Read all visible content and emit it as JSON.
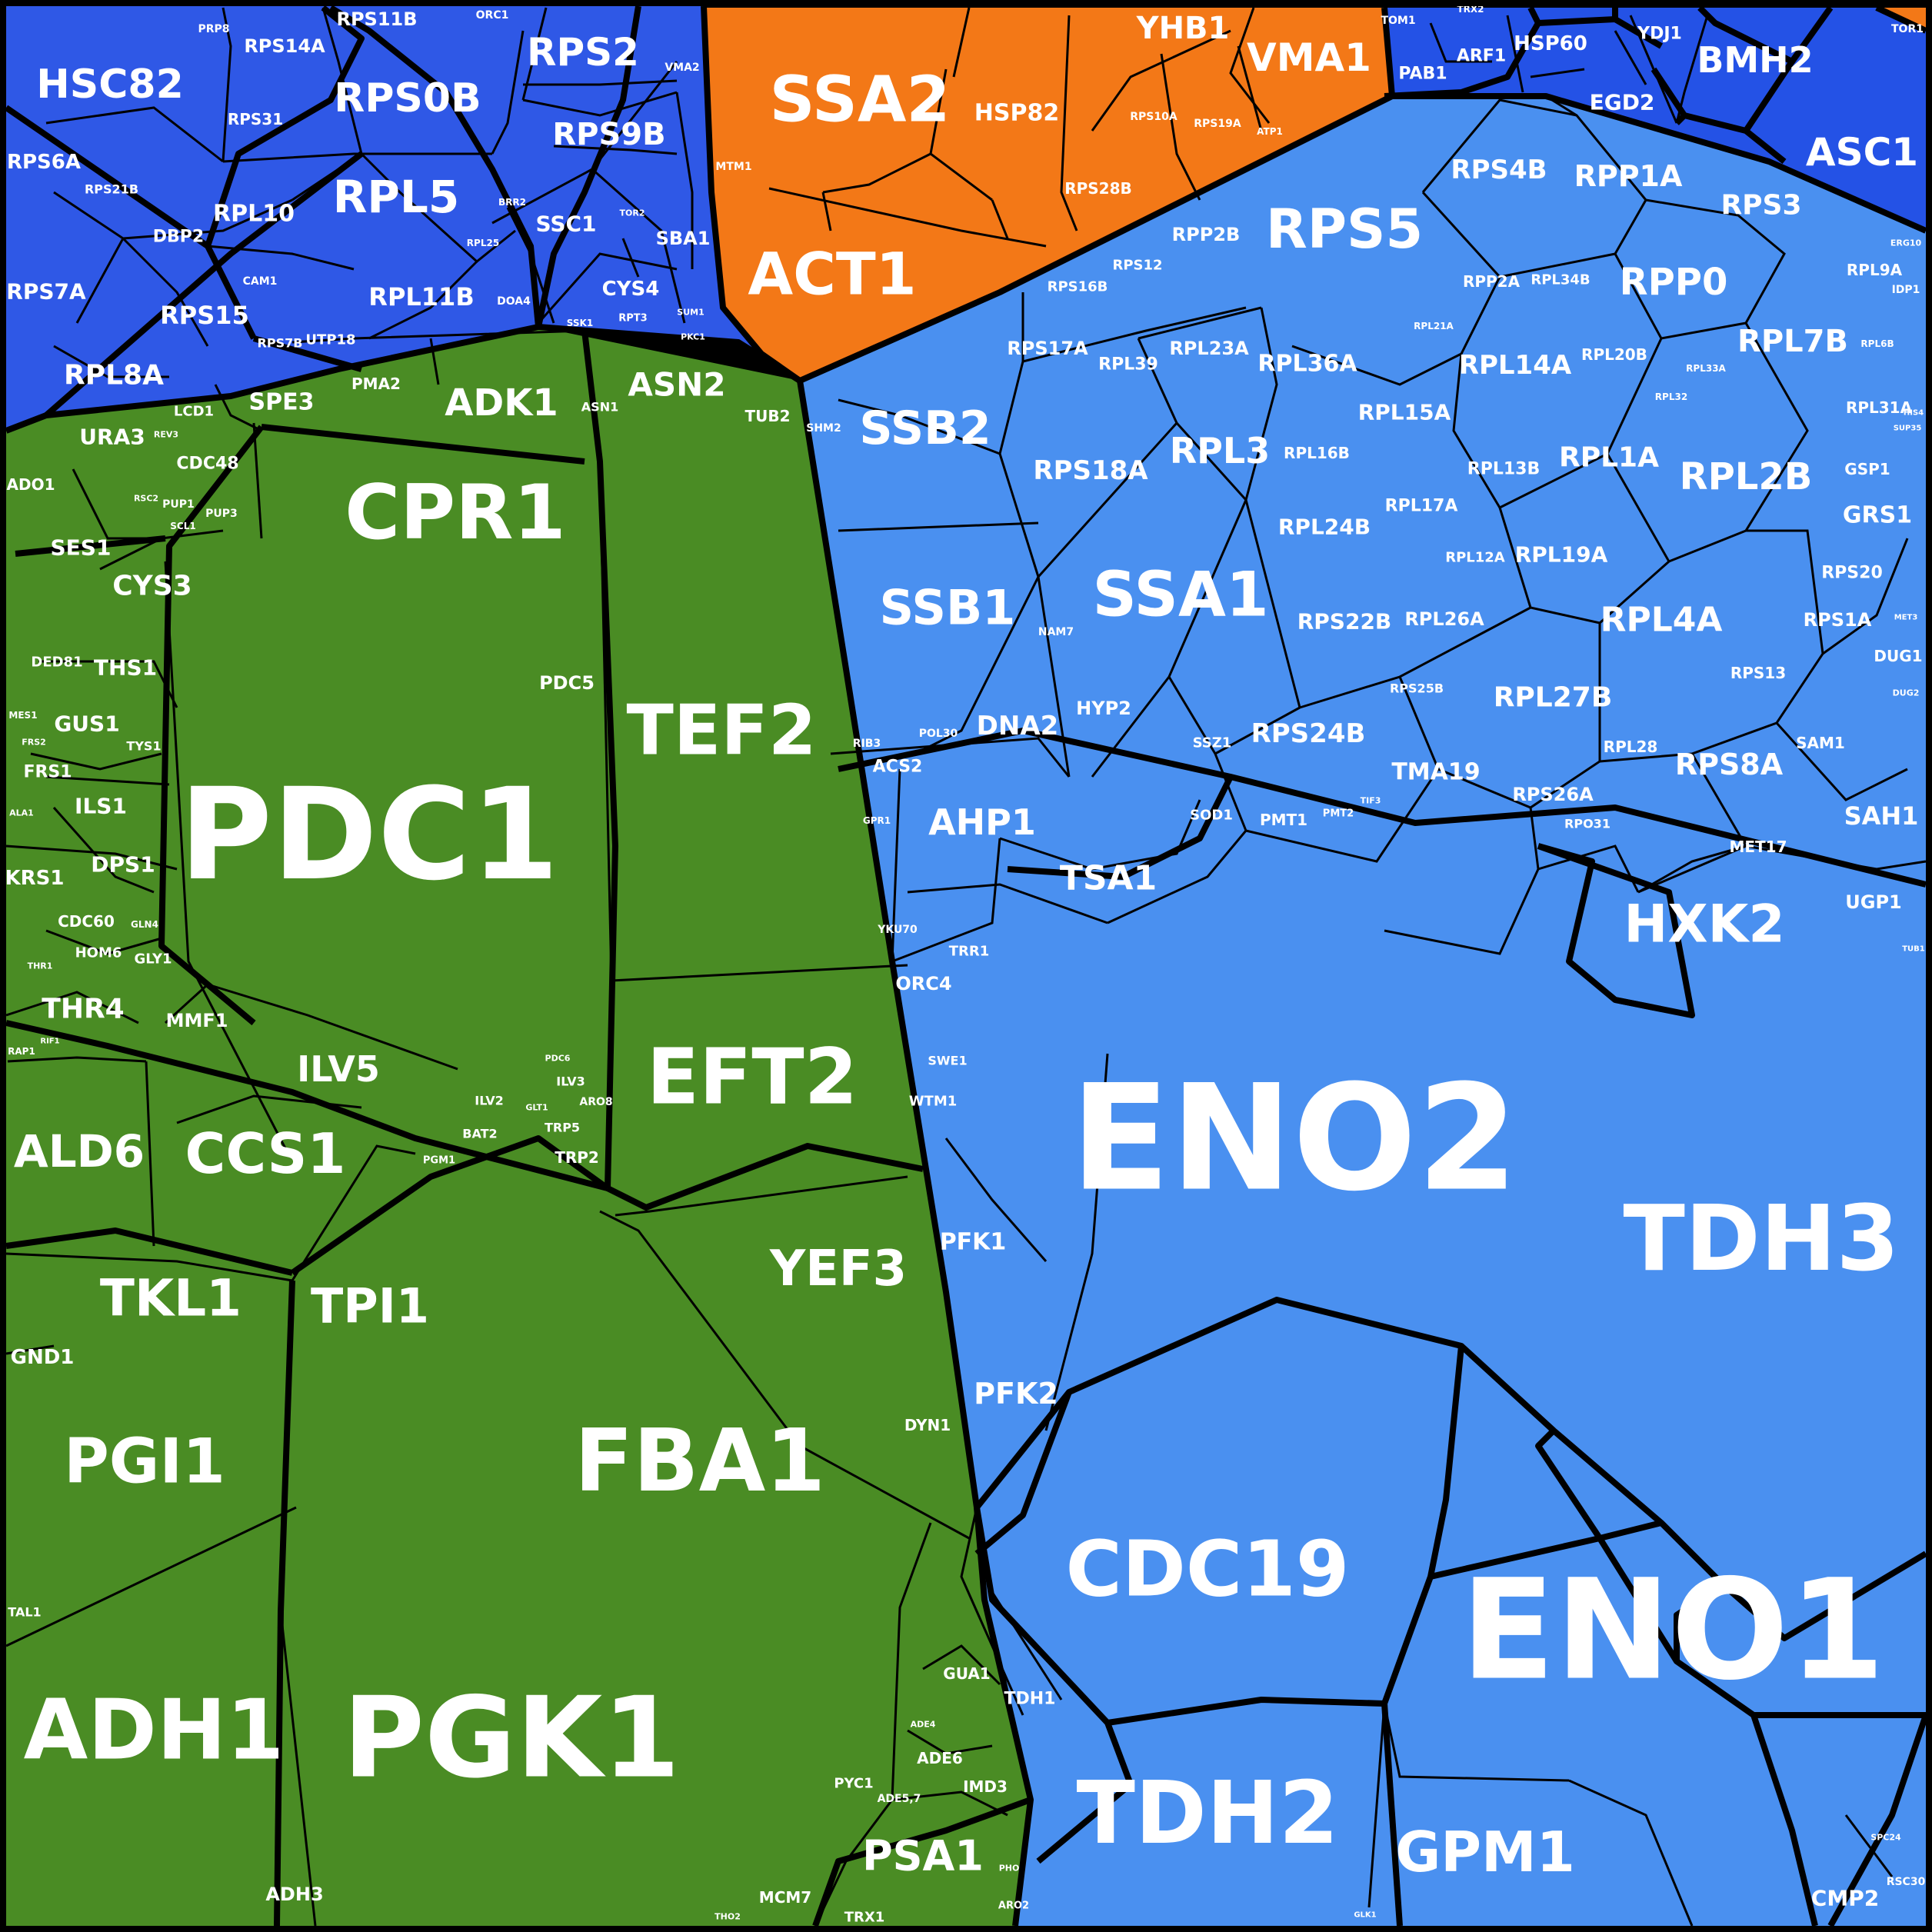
{
  "colors": {
    "green": "#4a8c24",
    "orange": "#f37817",
    "blue_dark": "#2554e8",
    "blue_light": "#4a90f0",
    "border": "#000000",
    "label": "#ffffff"
  },
  "regions": {
    "green": {
      "cells": [
        {
          "name": "PDC1",
          "label": "PDC1"
        },
        {
          "name": "PGK1",
          "label": "PGK1"
        },
        {
          "name": "FBA1",
          "label": "FBA1"
        },
        {
          "name": "ADH1",
          "label": "ADH1"
        },
        {
          "name": "TEF2",
          "label": "TEF2"
        },
        {
          "name": "EFT2",
          "label": "EFT2"
        },
        {
          "name": "CPR1",
          "label": "CPR1"
        },
        {
          "name": "PGI1",
          "label": "PGI1"
        },
        {
          "name": "CCS1",
          "label": "CCS1"
        },
        {
          "name": "ALD6",
          "label": "ALD6"
        },
        {
          "name": "TKL1",
          "label": "TKL1"
        },
        {
          "name": "TPI1",
          "label": "TPI1"
        },
        {
          "name": "YEF3",
          "label": "YEF3"
        },
        {
          "name": "ADK1",
          "label": "ADK1"
        },
        {
          "name": "ASN2",
          "label": "ASN2"
        },
        {
          "name": "ILV5",
          "label": "ILV5"
        },
        {
          "name": "PSA1",
          "label": "PSA1"
        },
        {
          "name": "CYS3",
          "label": "CYS3"
        },
        {
          "name": "THR4",
          "label": "THR4"
        },
        {
          "name": "SES1",
          "label": "SES1"
        },
        {
          "name": "URA3",
          "label": "URA3"
        },
        {
          "name": "SPE3",
          "label": "SPE3"
        },
        {
          "name": "THS1",
          "label": "THS1"
        },
        {
          "name": "GUS1",
          "label": "GUS1"
        },
        {
          "name": "ILS1",
          "label": "ILS1"
        },
        {
          "name": "DPS1",
          "label": "DPS1"
        },
        {
          "name": "KRS1",
          "label": "KRS1"
        },
        {
          "name": "FRS1",
          "label": "FRS1"
        },
        {
          "name": "MMF1",
          "label": "MMF1"
        },
        {
          "name": "GND1",
          "label": "GND1"
        },
        {
          "name": "ADH3",
          "label": "ADH3"
        },
        {
          "name": "TRP2",
          "label": "TRP2"
        },
        {
          "name": "ILV3",
          "label": "ILV3"
        },
        {
          "name": "ILV2",
          "label": "ILV2"
        },
        {
          "name": "BAT2",
          "label": "BAT2"
        },
        {
          "name": "TRP5",
          "label": "TRP5"
        },
        {
          "name": "ARO8",
          "label": "ARO8"
        },
        {
          "name": "PDC5",
          "label": "PDC5"
        },
        {
          "name": "PDC6",
          "label": "PDC6"
        },
        {
          "name": "GLT1",
          "label": "GLT1"
        },
        {
          "name": "PGM1",
          "label": "PGM1"
        },
        {
          "name": "CDC48",
          "label": "CDC48"
        },
        {
          "name": "LCD1",
          "label": "LCD1"
        },
        {
          "name": "PMA2",
          "label": "PMA2"
        },
        {
          "name": "ASN1",
          "label": "ASN1"
        },
        {
          "name": "TUB2",
          "label": "TUB2"
        },
        {
          "name": "ADO1",
          "label": "ADO1"
        },
        {
          "name": "CDC60",
          "label": "CDC60"
        },
        {
          "name": "HOM6",
          "label": "HOM6"
        },
        {
          "name": "GLY1",
          "label": "GLY1"
        },
        {
          "name": "DED81",
          "label": "DED81"
        },
        {
          "name": "TYS1",
          "label": "TYS1"
        },
        {
          "name": "MES1",
          "label": "MES1"
        },
        {
          "name": "FRS2",
          "label": "FRS2"
        },
        {
          "name": "ALA1",
          "label": "ALA1"
        },
        {
          "name": "GLN4",
          "label": "GLN4"
        },
        {
          "name": "THR1",
          "label": "THR1"
        },
        {
          "name": "RIF1",
          "label": "RIF1"
        },
        {
          "name": "RAP1",
          "label": "RAP1"
        },
        {
          "name": "TAL1",
          "label": "TAL1"
        },
        {
          "name": "DYN1",
          "label": "DYN1"
        },
        {
          "name": "GUA1",
          "label": "GUA1"
        },
        {
          "name": "ADE6",
          "label": "ADE6"
        },
        {
          "name": "IMD3",
          "label": "IMD3"
        },
        {
          "name": "PYC1",
          "label": "PYC1"
        },
        {
          "name": "ADE5,7",
          "label": "ADE5,7"
        },
        {
          "name": "ADE4",
          "label": "ADE4"
        },
        {
          "name": "MCM7",
          "label": "MCM7"
        },
        {
          "name": "TRX1",
          "label": "TRX1"
        },
        {
          "name": "ARO2",
          "label": "ARO2"
        },
        {
          "name": "PHO",
          "label": "PHO"
        },
        {
          "name": "THO2",
          "label": "THO2"
        },
        {
          "name": "PUP1",
          "label": "PUP1"
        },
        {
          "name": "PUP3",
          "label": "PUP3"
        },
        {
          "name": "SCL1",
          "label": "SCL1"
        },
        {
          "name": "RSC2",
          "label": "RSC2"
        },
        {
          "name": "REV3",
          "label": "REV3"
        }
      ]
    },
    "orange": {
      "cells": [
        {
          "name": "SSA2",
          "label": "SSA2"
        },
        {
          "name": "ACT1",
          "label": "ACT1"
        },
        {
          "name": "HSP82",
          "label": "HSP82"
        },
        {
          "name": "YHB1",
          "label": "YHB1"
        },
        {
          "name": "VMA1",
          "label": "VMA1"
        },
        {
          "name": "RPS28B",
          "label": "RPS28B"
        },
        {
          "name": "RPS10A",
          "label": "RPS10A"
        },
        {
          "name": "RPS19A",
          "label": "RPS19A"
        },
        {
          "name": "ATP1",
          "label": "ATP1"
        },
        {
          "name": "MTM1",
          "label": "MTM1"
        },
        {
          "name": "TOR1",
          "label": "TOR1"
        }
      ]
    },
    "dark_blue": {
      "cells": [
        {
          "name": "HSC82",
          "label": "HSC82"
        },
        {
          "name": "RPS0B",
          "label": "RPS0B"
        },
        {
          "name": "RPL5",
          "label": "RPL5"
        },
        {
          "name": "RPS2",
          "label": "RPS2"
        },
        {
          "name": "RPS9B",
          "label": "RPS9B"
        },
        {
          "name": "RPS14A",
          "label": "RPS14A"
        },
        {
          "name": "RPS11B",
          "label": "RPS11B"
        },
        {
          "name": "RPS6A",
          "label": "RPS6A"
        },
        {
          "name": "RPS7A",
          "label": "RPS7A"
        },
        {
          "name": "RPL8A",
          "label": "RPL8A"
        },
        {
          "name": "RPS15",
          "label": "RPS15"
        },
        {
          "name": "RPL10",
          "label": "RPL10"
        },
        {
          "name": "RPL11B",
          "label": "RPL11B"
        },
        {
          "name": "DBP2",
          "label": "DBP2"
        },
        {
          "name": "RPS31",
          "label": "RPS31"
        },
        {
          "name": "RPS21B",
          "label": "RPS21B"
        },
        {
          "name": "CAM1",
          "label": "CAM1"
        },
        {
          "name": "RPS7B",
          "label": "RPS7B"
        },
        {
          "name": "UTP18",
          "label": "UTP18"
        },
        {
          "name": "SSC1",
          "label": "SSC1"
        },
        {
          "name": "SBA1",
          "label": "SBA1"
        },
        {
          "name": "CYS4",
          "label": "CYS4"
        },
        {
          "name": "BMH2",
          "label": "BMH2"
        },
        {
          "name": "ASC1",
          "label": "ASC1"
        },
        {
          "name": "HSP60",
          "label": "HSP60"
        },
        {
          "name": "EGD2",
          "label": "EGD2"
        },
        {
          "name": "YDJ1",
          "label": "YDJ1"
        },
        {
          "name": "ARF1",
          "label": "ARF1"
        },
        {
          "name": "PAB1",
          "label": "PAB1"
        },
        {
          "name": "TOM1",
          "label": "TOM1"
        },
        {
          "name": "PRP8",
          "label": "PRP8"
        },
        {
          "name": "ORC1",
          "label": "ORC1"
        },
        {
          "name": "VMA2",
          "label": "VMA2"
        },
        {
          "name": "DOA4",
          "label": "DOA4"
        },
        {
          "name": "RPL25",
          "label": "RPL25"
        },
        {
          "name": "BRR2",
          "label": "BRR2"
        },
        {
          "name": "SSK1",
          "label": "SSK1"
        },
        {
          "name": "RPT3",
          "label": "RPT3"
        },
        {
          "name": "TOR2",
          "label": "TOR2"
        },
        {
          "name": "PKC1",
          "label": "PKC1"
        },
        {
          "name": "SUM1",
          "label": "SUM1"
        },
        {
          "name": "TRX2",
          "label": "TRX2"
        }
      ]
    },
    "light_blue": {
      "cells": [
        {
          "name": "ENO2",
          "label": "ENO2"
        },
        {
          "name": "ENO1",
          "label": "ENO1"
        },
        {
          "name": "TDH3",
          "label": "TDH3"
        },
        {
          "name": "TDH2",
          "label": "TDH2"
        },
        {
          "name": "CDC19",
          "label": "CDC19"
        },
        {
          "name": "GPM1",
          "label": "GPM1"
        },
        {
          "name": "HXK2",
          "label": "HXK2"
        },
        {
          "name": "SSA1",
          "label": "SSA1"
        },
        {
          "name": "RPS5",
          "label": "RPS5"
        },
        {
          "name": "SSB2",
          "label": "SSB2"
        },
        {
          "name": "SSB1",
          "label": "SSB1"
        },
        {
          "name": "RPL4A",
          "label": "RPL4A"
        },
        {
          "name": "RPL2B",
          "label": "RPL2B"
        },
        {
          "name": "RPP0",
          "label": "RPP0"
        },
        {
          "name": "RPL3",
          "label": "RPL3"
        },
        {
          "name": "RPS8A",
          "label": "RPS8A"
        },
        {
          "name": "AHP1",
          "label": "AHP1"
        },
        {
          "name": "TSA1",
          "label": "TSA1"
        },
        {
          "name": "PFK2",
          "label": "PFK2"
        },
        {
          "name": "PFK1",
          "label": "PFK1"
        },
        {
          "name": "RPL7B",
          "label": "RPL7B"
        },
        {
          "name": "RPL14A",
          "label": "RPL14A"
        },
        {
          "name": "RPL1A",
          "label": "RPL1A"
        },
        {
          "name": "RPL27B",
          "label": "RPL27B"
        },
        {
          "name": "RPS24B",
          "label": "RPS24B"
        },
        {
          "name": "RPP1A",
          "label": "RPP1A"
        },
        {
          "name": "RPS4B",
          "label": "RPS4B"
        },
        {
          "name": "RPS3",
          "label": "RPS3"
        },
        {
          "name": "RPS18A",
          "label": "RPS18A"
        },
        {
          "name": "RPL36A",
          "label": "RPL36A"
        },
        {
          "name": "RPL15A",
          "label": "RPL15A"
        },
        {
          "name": "RPL24B",
          "label": "RPL24B"
        },
        {
          "name": "RPL19A",
          "label": "RPL19A"
        },
        {
          "name": "RPS22B",
          "label": "RPS22B"
        },
        {
          "name": "RPL26A",
          "label": "RPL26A"
        },
        {
          "name": "TMA19",
          "label": "TMA19"
        },
        {
          "name": "RPS26A",
          "label": "RPS26A"
        },
        {
          "name": "RPL23A",
          "label": "RPL23A"
        },
        {
          "name": "RPS17A",
          "label": "RPS17A"
        },
        {
          "name": "RPL39",
          "label": "RPL39"
        },
        {
          "name": "RPP2B",
          "label": "RPP2B"
        },
        {
          "name": "RPS12",
          "label": "RPS12"
        },
        {
          "name": "RPS16B",
          "label": "RPS16B"
        },
        {
          "name": "RPL16B",
          "label": "RPL16B"
        },
        {
          "name": "RPL13B",
          "label": "RPL13B"
        },
        {
          "name": "RPL17A",
          "label": "RPL17A"
        },
        {
          "name": "RPL12A",
          "label": "RPL12A"
        },
        {
          "name": "RPP2A",
          "label": "RPP2A"
        },
        {
          "name": "RPL34B",
          "label": "RPL34B"
        },
        {
          "name": "RPL20B",
          "label": "RPL20B"
        },
        {
          "name": "RPL9A",
          "label": "RPL9A"
        },
        {
          "name": "RPL31A",
          "label": "RPL31A"
        },
        {
          "name": "RPL28",
          "label": "RPL28"
        },
        {
          "name": "RPS25B",
          "label": "RPS25B"
        },
        {
          "name": "RPS20",
          "label": "RPS20"
        },
        {
          "name": "RPS1A",
          "label": "RPS1A"
        },
        {
          "name": "RPS13",
          "label": "RPS13"
        },
        {
          "name": "SAM1",
          "label": "SAM1"
        },
        {
          "name": "SAH1",
          "label": "SAH1"
        },
        {
          "name": "MET17",
          "label": "MET17"
        },
        {
          "name": "UGP1",
          "label": "UGP1"
        },
        {
          "name": "GRS1",
          "label": "GRS1"
        },
        {
          "name": "GSP1",
          "label": "GSP1"
        },
        {
          "name": "DUG1",
          "label": "DUG1"
        },
        {
          "name": "DNA2",
          "label": "DNA2"
        },
        {
          "name": "HYP2",
          "label": "HYP2"
        },
        {
          "name": "ACS2",
          "label": "ACS2"
        },
        {
          "name": "ORC4",
          "label": "ORC4"
        },
        {
          "name": "TRR1",
          "label": "TRR1"
        },
        {
          "name": "SWE1",
          "label": "SWE1"
        },
        {
          "name": "WTM1",
          "label": "WTM1"
        },
        {
          "name": "TDH1",
          "label": "TDH1"
        },
        {
          "name": "CMP2",
          "label": "CMP2"
        },
        {
          "name": "SOD1",
          "label": "SOD1"
        },
        {
          "name": "PMT1",
          "label": "PMT1"
        },
        {
          "name": "PMT2",
          "label": "PMT2"
        },
        {
          "name": "SSZ1",
          "label": "SSZ1"
        },
        {
          "name": "POL30",
          "label": "POL30"
        },
        {
          "name": "RIB3",
          "label": "RIB3"
        },
        {
          "name": "YKU70",
          "label": "YKU70"
        },
        {
          "name": "GPR1",
          "label": "GPR1"
        },
        {
          "name": "NAM7",
          "label": "NAM7"
        },
        {
          "name": "SHM2",
          "label": "SHM2"
        },
        {
          "name": "TIF3",
          "label": "TIF3"
        },
        {
          "name": "RPO31",
          "label": "RPO31"
        },
        {
          "name": "RPL21A",
          "label": "RPL21A"
        },
        {
          "name": "RPL33A",
          "label": "RPL33A"
        },
        {
          "name": "RPL32",
          "label": "RPL32"
        },
        {
          "name": "RPL6B",
          "label": "RPL6B"
        },
        {
          "name": "IDP1",
          "label": "IDP1"
        },
        {
          "name": "ERG10",
          "label": "ERG10"
        },
        {
          "name": "GLK1",
          "label": "GLK1"
        },
        {
          "name": "RSC30",
          "label": "RSC30"
        },
        {
          "name": "SPC24",
          "label": "SPC24"
        },
        {
          "name": "DUG2",
          "label": "DUG2"
        },
        {
          "name": "MET3",
          "label": "MET3"
        },
        {
          "name": "HIS4",
          "label": "HIS4"
        },
        {
          "name": "TUB1",
          "label": "TUB1"
        },
        {
          "name": "SUP35",
          "label": "SUP35"
        }
      ]
    }
  }
}
